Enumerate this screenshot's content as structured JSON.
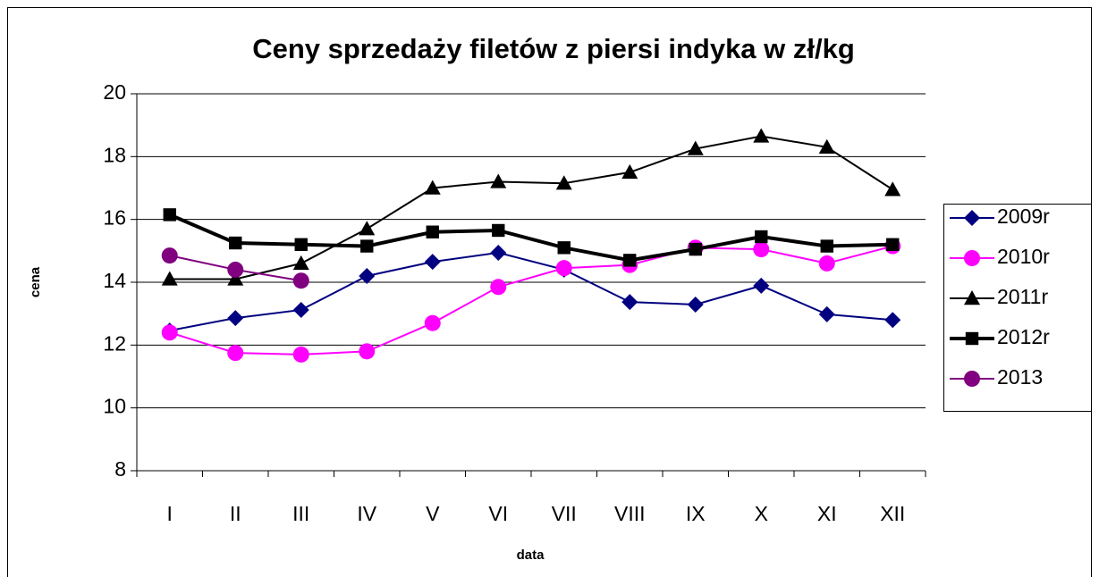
{
  "chart_data": {
    "type": "line",
    "title": "Ceny sprzedaży filetów z  piersi indyka w zł/kg",
    "x_label": "data",
    "y_label": "cena",
    "categories": [
      "I",
      "II",
      "III",
      "IV",
      "V",
      "VI",
      "VII",
      "VIII",
      "IX",
      "X",
      "XI",
      "XII"
    ],
    "ylim": [
      8,
      20
    ],
    "yticks": [
      8,
      10,
      12,
      14,
      16,
      18,
      20
    ],
    "grid": true,
    "legend": "right",
    "series": [
      {
        "name": "2009r",
        "color": "#000080",
        "marker": "diamond",
        "line_width": 2,
        "values": [
          12.46,
          12.86,
          13.12,
          14.2,
          14.65,
          14.94,
          14.4,
          13.37,
          13.29,
          13.89,
          12.98,
          12.8
        ]
      },
      {
        "name": "2010r",
        "color": "#ff00ff",
        "marker": "circle",
        "line_width": 2,
        "values": [
          12.4,
          11.75,
          11.7,
          11.8,
          12.7,
          13.85,
          14.45,
          14.55,
          15.1,
          15.05,
          14.6,
          15.15
        ]
      },
      {
        "name": "2011r",
        "color": "#000000",
        "marker": "triangle",
        "line_width": 2,
        "values": [
          14.1,
          14.1,
          14.6,
          15.7,
          17.0,
          17.2,
          17.15,
          17.5,
          18.25,
          18.65,
          18.3,
          16.95
        ]
      },
      {
        "name": "2012r",
        "color": "#000000",
        "marker": "square",
        "line_width": 4,
        "values": [
          16.15,
          15.25,
          15.2,
          15.15,
          15.6,
          15.65,
          15.1,
          14.7,
          15.05,
          15.45,
          15.15,
          15.2
        ]
      },
      {
        "name": "2013",
        "color": "#800080",
        "marker": "circle",
        "line_width": 2,
        "values": [
          14.85,
          14.4,
          14.05,
          null,
          null,
          null,
          null,
          null,
          null,
          null,
          null,
          null
        ]
      }
    ]
  }
}
